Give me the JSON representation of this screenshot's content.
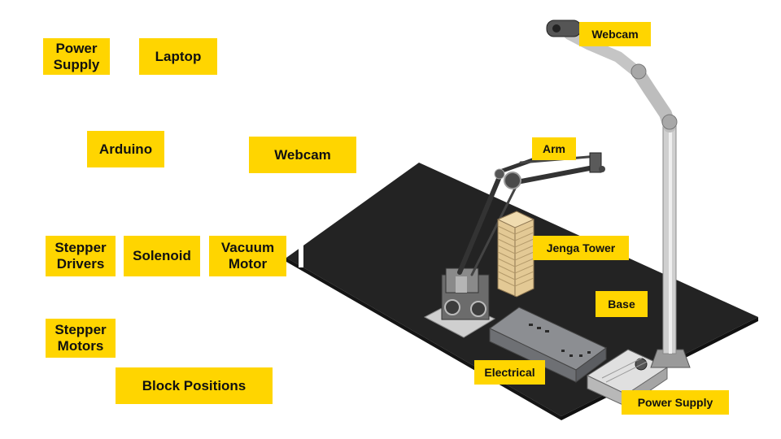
{
  "colors": {
    "label_bg": "#ffd500",
    "label_text": "#111111",
    "base_board": "#232323",
    "metal": "#d8d8d8",
    "enclosure": "#7a7c80",
    "jenga": "#e3c995"
  },
  "legend_labels": {
    "power_supply": "Power\nSupply",
    "laptop": "Laptop",
    "arduino": "Arduino",
    "webcam": "Webcam",
    "stepper_drivers": "Stepper\nDrivers",
    "solenoid": "Solenoid",
    "vacuum_motor": "Vacuum\nMotor",
    "stepper_motors": "Stepper\nMotors",
    "block_positions": "Block Positions"
  },
  "callouts": {
    "webcam": "Webcam",
    "arm": "Arm",
    "jenga_tower": "Jenga Tower",
    "base": "Base",
    "electrical": "Electrical",
    "power_supply": "Power Supply"
  }
}
